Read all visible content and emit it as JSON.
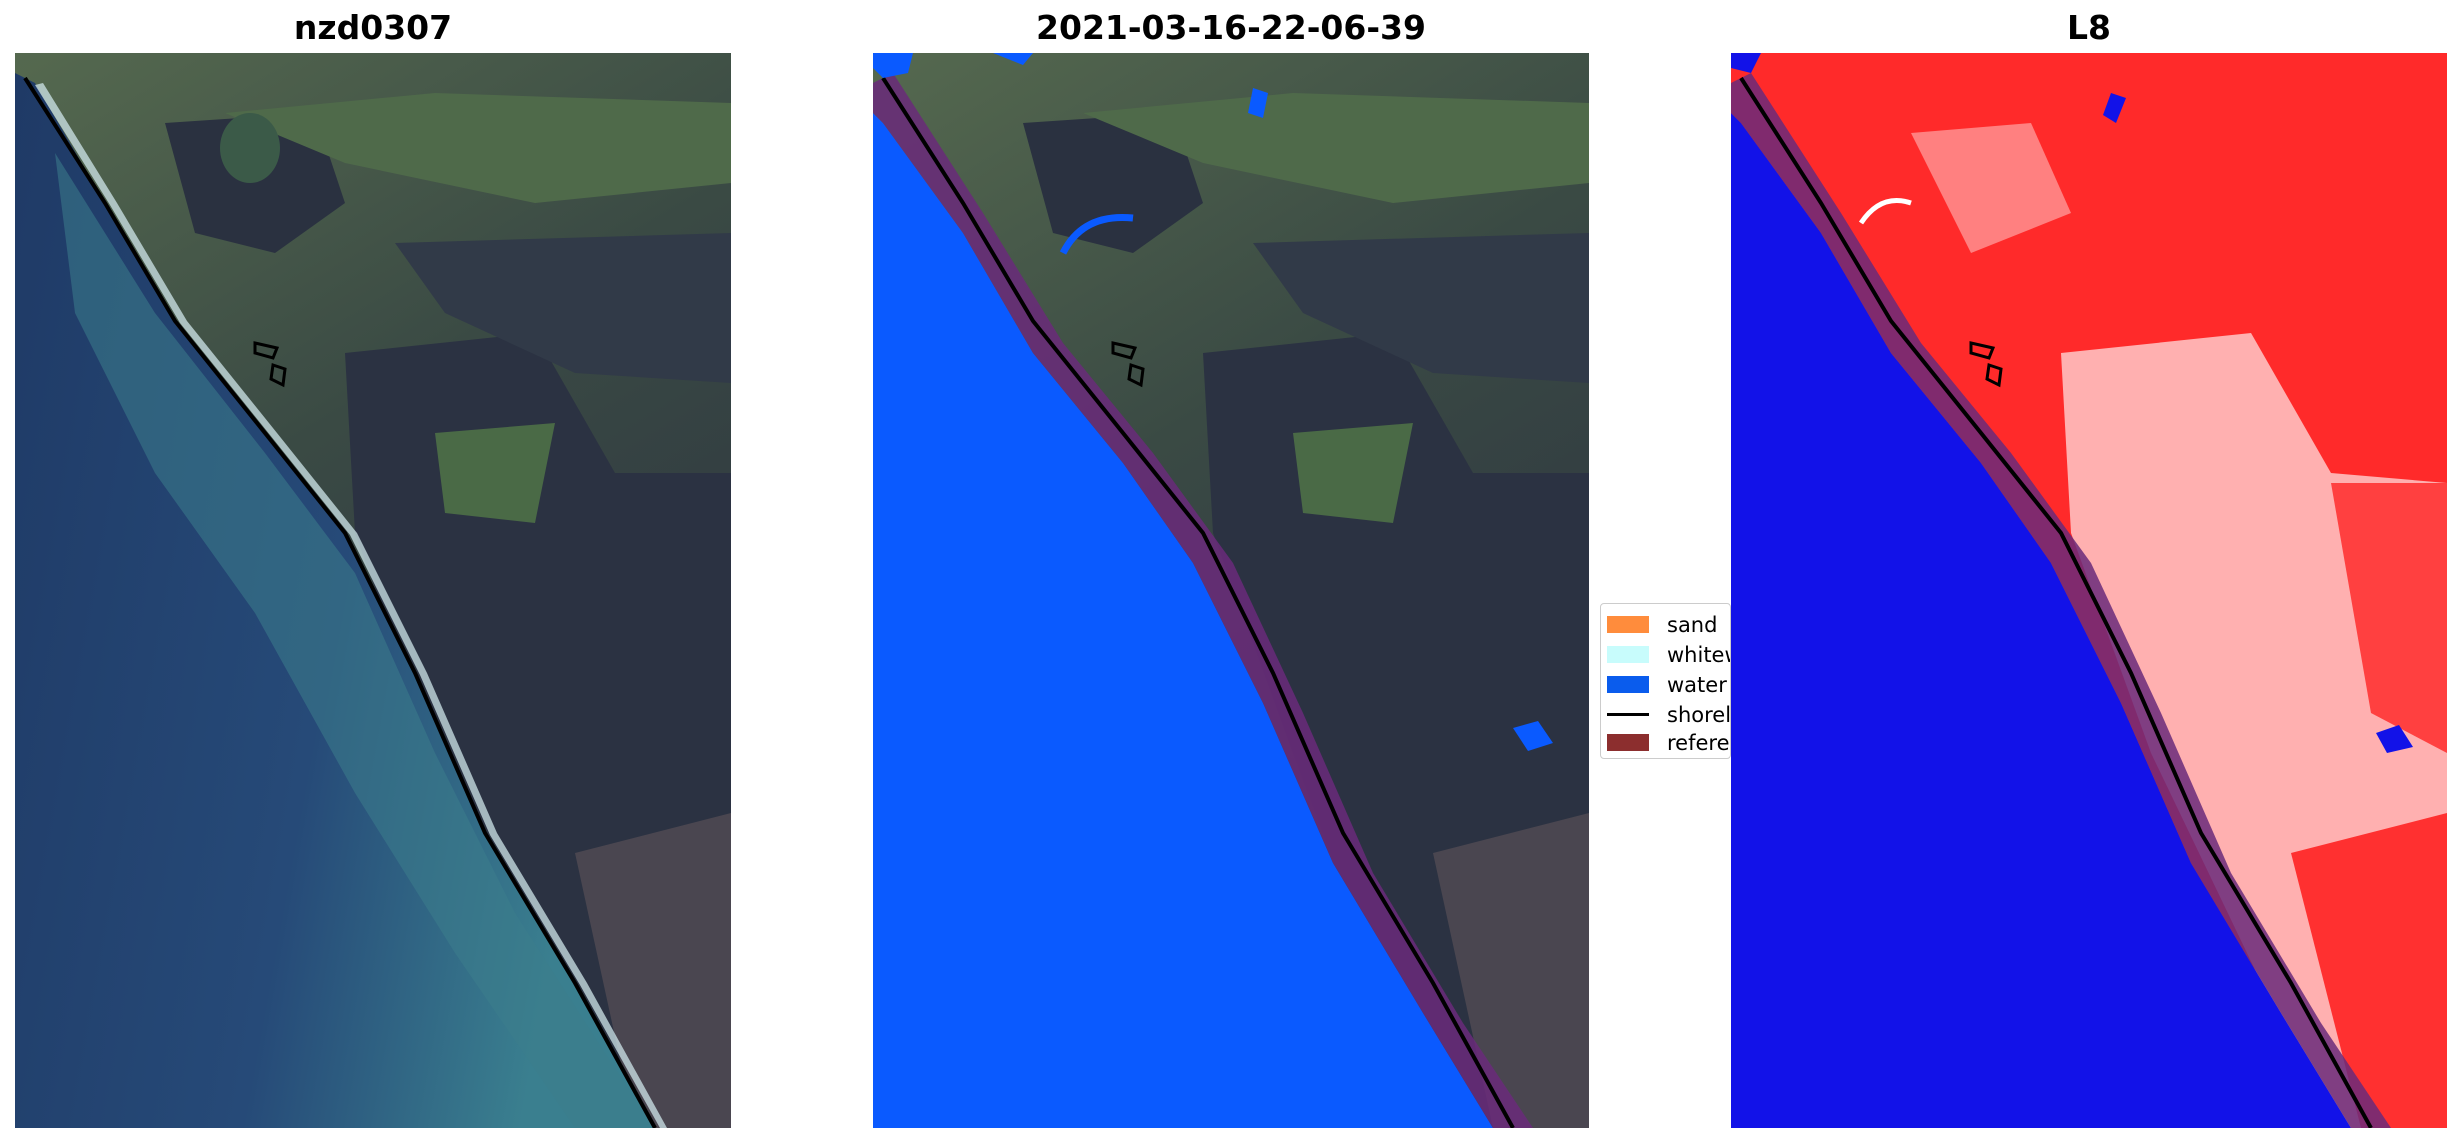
{
  "panels": [
    {
      "title": "nzd0307"
    },
    {
      "title": "2021-03-16-22-06-39"
    },
    {
      "title": "L8"
    }
  ],
  "legend": {
    "items": [
      {
        "label": "sand",
        "color": "#ff8c3c"
      },
      {
        "label": "whitewater",
        "color": "#c8fcfc"
      },
      {
        "label": "water",
        "color": "#0a5ced"
      },
      {
        "label": "shoreline",
        "color": "#000000"
      },
      {
        "label": "reference shoreline buffer",
        "color": "#8c2e2e"
      }
    ]
  },
  "colors": {
    "ocean_deep": "#1e3560",
    "ocean_shallow": "#3a7f8f",
    "land_forest": "#2a3240",
    "land_farm": "#4b5c48",
    "classified_water": "#0a5aff",
    "buffer": "#6a2a7a",
    "l8_water": "#1010e6",
    "l8_land": "#ff2020"
  }
}
